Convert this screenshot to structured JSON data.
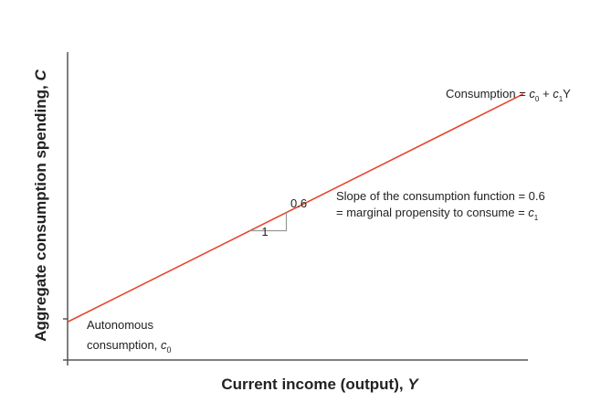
{
  "chart_data": {
    "type": "line",
    "xlabel": "Current income (output),",
    "xlabel_var": "Y",
    "ylabel": "Aggregate consumption spending,",
    "ylabel_var": "C",
    "series": [
      {
        "name": "Consumption",
        "color": "#e8452c",
        "x": [
          0,
          10
        ],
        "y": [
          1,
          7
        ]
      }
    ],
    "xlim": [
      0,
      10.1
    ],
    "ylim": [
      0,
      8.1
    ],
    "grid": false,
    "annotations": {
      "line_label": "Consumption = c0 + c1Y",
      "slope_line1": "Slope of the consumption function = 0.6",
      "slope_line2": "= marginal propensity to consume = c1",
      "run_label": "1",
      "rise_label": "0.6",
      "intercept_line1": "Autonomous",
      "intercept_line2": "consumption, c0"
    },
    "slope_triangle": {
      "x0": 4.0,
      "x1": 4.8
    }
  }
}
